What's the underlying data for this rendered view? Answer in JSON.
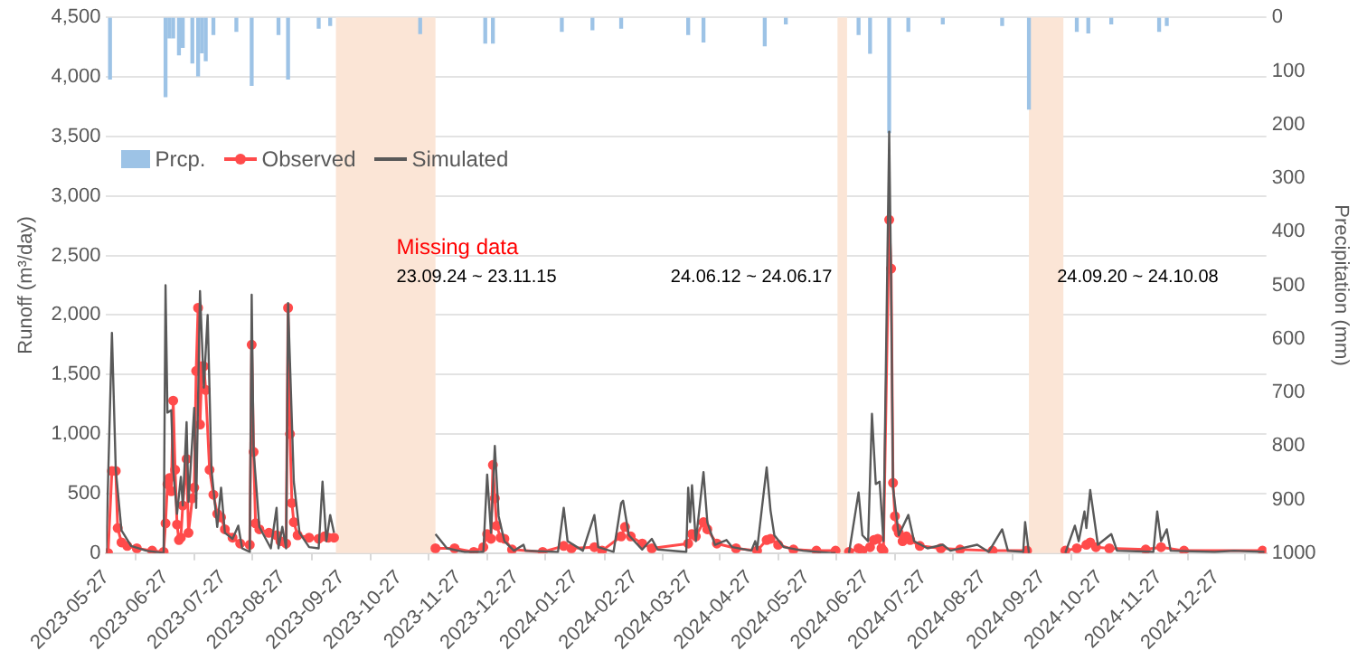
{
  "chart_data": {
    "type": "line",
    "xlabel": null,
    "ylabel": "Runoff (m³/day)",
    "y2label": "Precipitation (mm)",
    "xlim": [
      "2023-05-27",
      "2025-01-22"
    ],
    "xticks": [
      "2023-05-27",
      "2023-06-27",
      "2023-07-27",
      "2023-08-27",
      "2023-09-27",
      "2023-10-27",
      "2023-11-27",
      "2023-12-27",
      "2024-01-27",
      "2024-02-27",
      "2024-03-27",
      "2024-04-27",
      "2024-05-27",
      "2024-06-27",
      "2024-07-27",
      "2024-08-27",
      "2024-09-27",
      "2024-10-27",
      "2024-11-27",
      "2024-12-27"
    ],
    "ylim": [
      0,
      4500
    ],
    "yticks": [
      {
        "value": 0,
        "label": "0"
      },
      {
        "value": 500,
        "label": "500"
      },
      {
        "value": 1000,
        "label": "1,000"
      },
      {
        "value": 1500,
        "label": "1,500"
      },
      {
        "value": 2000,
        "label": "2,000"
      },
      {
        "value": 2500,
        "label": "2,500"
      },
      {
        "value": 3000,
        "label": "3,000"
      },
      {
        "value": 3500,
        "label": "3,500"
      },
      {
        "value": 4000,
        "label": "4,000"
      },
      {
        "value": 4500,
        "label": "4,500"
      }
    ],
    "y2lim": [
      1000,
      0
    ],
    "y2ticks": [
      0,
      100,
      200,
      300,
      400,
      500,
      600,
      700,
      800,
      900,
      1000
    ],
    "grid": "y",
    "legend": "top left",
    "bands": [
      {
        "axis": "x",
        "from": "2023-09-24",
        "to": "2023-11-15",
        "label": "Missing data",
        "color": "#fbe5d6"
      },
      {
        "axis": "x",
        "from": "2024-06-12",
        "to": "2024-06-17",
        "color": "#fbe5d6"
      },
      {
        "axis": "x",
        "from": "2024-09-20",
        "to": "2024-10-08",
        "color": "#fbe5d6"
      }
    ],
    "annotations": [
      "23.09.24 ~ 23.11.15",
      "24.06.12 ~ 24.06.17",
      "24.09.20 ~ 24.10.08"
    ],
    "series": [
      {
        "name": "Prcp.",
        "type": "bar",
        "axis": "y2",
        "color": "#9dc3e6",
        "x": [
          "2023-05-29",
          "2023-06-27",
          "2023-06-29",
          "2023-07-01",
          "2023-07-04",
          "2023-07-06",
          "2023-07-11",
          "2023-07-14",
          "2023-07-16",
          "2023-07-18",
          "2023-07-22",
          "2023-08-03",
          "2023-08-11",
          "2023-08-25",
          "2023-08-30",
          "2023-09-15",
          "2023-09-21",
          "2023-11-07",
          "2023-12-11",
          "2023-12-15",
          "2024-01-20",
          "2024-02-05",
          "2024-02-20",
          "2024-03-26",
          "2024-04-03",
          "2024-05-05",
          "2024-05-16",
          "2024-06-23",
          "2024-06-29",
          "2024-07-09",
          "2024-07-19",
          "2024-08-06",
          "2024-09-06",
          "2024-09-20",
          "2024-10-15",
          "2024-10-21",
          "2024-11-02",
          "2024-11-27",
          "2024-12-01"
        ],
        "values": [
          115,
          148,
          38,
          38,
          70,
          56,
          85,
          109,
          66,
          81,
          32,
          26,
          127,
          32,
          115,
          20,
          15,
          30,
          48,
          48,
          26,
          23,
          20,
          32,
          46,
          53,
          12,
          32,
          67,
          215,
          26,
          12,
          15,
          171,
          26,
          29,
          12,
          26,
          15
        ]
      },
      {
        "name": "Observed",
        "color": "#ff4b4b",
        "marker": "circle",
        "x": [
          "2023-05-27",
          "2023-05-28",
          "2023-05-30",
          "2023-06-01",
          "2023-06-02",
          "2023-06-04",
          "2023-06-07",
          "2023-06-12",
          "2023-06-20",
          "2023-06-26",
          "2023-06-27",
          "2023-06-28",
          "2023-06-29",
          "2023-06-30",
          "2023-07-01",
          "2023-07-02",
          "2023-07-03",
          "2023-07-04",
          "2023-07-05",
          "2023-07-06",
          "2023-07-08",
          "2023-07-09",
          "2023-07-11",
          "2023-07-12",
          "2023-07-13",
          "2023-07-14",
          "2023-07-15",
          "2023-07-16",
          "2023-07-17",
          "2023-07-18",
          "2023-07-20",
          "2023-07-22",
          "2023-07-24",
          "2023-07-26",
          "2023-07-28",
          "2023-08-01",
          "2023-08-05",
          "2023-08-10",
          "2023-08-11",
          "2023-08-12",
          "2023-08-13",
          "2023-08-15",
          "2023-08-20",
          "2023-08-24",
          "2023-08-26",
          "2023-08-29",
          "2023-08-30",
          "2023-08-31",
          "2023-09-01",
          "2023-09-02",
          "2023-09-04",
          "2023-09-10",
          "2023-09-15",
          "2023-09-18",
          "2023-09-20",
          "2023-09-23",
          "2023-10-20",
          "2023-11-15",
          "2023-11-25",
          "2023-12-05",
          "2023-12-10",
          "2023-12-12",
          "2023-12-14",
          "2023-12-15",
          "2023-12-16",
          "2023-12-17",
          "2023-12-19",
          "2023-12-21",
          "2023-12-25",
          "2024-01-10",
          "2024-01-21",
          "2024-01-25",
          "2024-02-06",
          "2024-02-10",
          "2024-02-20",
          "2024-02-22",
          "2024-02-25",
          "2024-03-02",
          "2024-03-07",
          "2024-03-26",
          "2024-03-28",
          "2024-03-30",
          "2024-04-03",
          "2024-04-05",
          "2024-04-10",
          "2024-04-20",
          "2024-05-01",
          "2024-05-06",
          "2024-05-08",
          "2024-05-12",
          "2024-05-20",
          "2024-06-01",
          "2024-06-11",
          "2024-06-14",
          "2024-06-18",
          "2024-06-23",
          "2024-06-25",
          "2024-06-29",
          "2024-07-01",
          "2024-07-03",
          "2024-07-05",
          "2024-07-06",
          "2024-07-09",
          "2024-07-10",
          "2024-07-11",
          "2024-07-12",
          "2024-07-13",
          "2024-07-14",
          "2024-07-16",
          "2024-07-18",
          "2024-07-20",
          "2024-07-25",
          "2024-08-05",
          "2024-08-15",
          "2024-09-01",
          "2024-09-19",
          "2024-09-30",
          "2024-10-09",
          "2024-10-15",
          "2024-10-20",
          "2024-10-22",
          "2024-10-25",
          "2024-11-01",
          "2024-11-20",
          "2024-11-28",
          "2024-12-10",
          "2025-01-20"
        ],
        "values": [
          0,
          0,
          690,
          690,
          210,
          90,
          60,
          40,
          20,
          10,
          250,
          580,
          630,
          520,
          1280,
          700,
          240,
          110,
          130,
          400,
          790,
          170,
          460,
          550,
          1530,
          2060,
          1080,
          1570,
          1570,
          1370,
          700,
          490,
          330,
          300,
          200,
          130,
          80,
          70,
          1750,
          850,
          250,
          200,
          170,
          150,
          100,
          80,
          2060,
          1000,
          420,
          260,
          150,
          130,
          120,
          140,
          130,
          130,
          null,
          40,
          40,
          10,
          50,
          160,
          120,
          740,
          460,
          230,
          130,
          120,
          30,
          10,
          60,
          40,
          50,
          20,
          140,
          220,
          140,
          80,
          40,
          80,
          160,
          140,
          260,
          200,
          80,
          40,
          20,
          110,
          120,
          70,
          30,
          20,
          20,
          null,
          10,
          40,
          20,
          50,
          110,
          120,
          40,
          20,
          2800,
          2390,
          590,
          310,
          210,
          170,
          100,
          140,
          110,
          60,
          40,
          30,
          20,
          20,
          null,
          20,
          40,
          70,
          90,
          50,
          40,
          30,
          50,
          20,
          20
        ]
      },
      {
        "name": "Simulated",
        "color": "#595959",
        "marker": "none",
        "x": [
          "2023-05-27",
          "2023-05-30",
          "2023-06-01",
          "2023-06-04",
          "2023-06-09",
          "2023-06-17",
          "2023-06-26",
          "2023-06-27",
          "2023-06-28",
          "2023-06-30",
          "2023-07-01",
          "2023-07-03",
          "2023-07-05",
          "2023-07-06",
          "2023-07-08",
          "2023-07-09",
          "2023-07-12",
          "2023-07-13",
          "2023-07-15",
          "2023-07-17",
          "2023-07-19",
          "2023-07-21",
          "2023-07-24",
          "2023-07-26",
          "2023-07-28",
          "2023-08-01",
          "2023-08-04",
          "2023-08-06",
          "2023-08-10",
          "2023-08-11",
          "2023-08-12",
          "2023-08-15",
          "2023-08-21",
          "2023-08-24",
          "2023-08-25",
          "2023-08-27",
          "2023-08-29",
          "2023-08-30",
          "2023-09-02",
          "2023-09-05",
          "2023-09-10",
          "2023-09-15",
          "2023-09-17",
          "2023-09-19",
          "2023-09-21",
          "2023-09-23",
          "2023-10-20",
          "2023-11-15",
          "2023-11-21",
          "2023-11-30",
          "2023-12-10",
          "2023-12-12",
          "2023-12-14",
          "2023-12-16",
          "2023-12-18",
          "2023-12-21",
          "2023-12-26",
          "2023-12-31",
          "2024-01-01",
          "2024-01-18",
          "2024-01-21",
          "2024-01-23",
          "2024-01-31",
          "2024-02-06",
          "2024-02-08",
          "2024-02-16",
          "2024-02-20",
          "2024-02-21",
          "2024-02-24",
          "2024-03-02",
          "2024-03-07",
          "2024-03-10",
          "2024-03-25",
          "2024-03-26",
          "2024-03-27",
          "2024-03-28",
          "2024-03-30",
          "2024-04-03",
          "2024-04-05",
          "2024-04-09",
          "2024-04-15",
          "2024-04-18",
          "2024-04-28",
          "2024-04-30",
          "2024-05-01",
          "2024-05-06",
          "2024-05-08",
          "2024-05-10",
          "2024-05-15",
          "2024-05-25",
          "2024-06-09",
          "2024-06-11",
          "2024-06-14",
          "2024-06-18",
          "2024-06-23",
          "2024-06-25",
          "2024-06-28",
          "2024-06-30",
          "2024-07-02",
          "2024-07-04",
          "2024-07-06",
          "2024-07-09",
          "2024-07-10",
          "2024-07-11",
          "2024-07-14",
          "2024-07-19",
          "2024-07-22",
          "2024-07-29",
          "2024-08-06",
          "2024-08-10",
          "2024-08-24",
          "2024-08-30",
          "2024-09-06",
          "2024-09-09",
          "2024-09-17",
          "2024-09-18",
          "2024-09-20",
          "2024-09-30",
          "2024-10-09",
          "2024-10-14",
          "2024-10-16",
          "2024-10-19",
          "2024-10-20",
          "2024-10-22",
          "2024-10-26",
          "2024-11-02",
          "2024-11-05",
          "2024-11-24",
          "2024-11-26",
          "2024-11-28",
          "2024-12-01",
          "2024-12-03",
          "2024-12-26",
          "2025-01-05",
          "2025-01-21"
        ],
        "values": [
          0,
          1850,
          700,
          190,
          60,
          20,
          0,
          2250,
          1180,
          1200,
          700,
          330,
          640,
          400,
          1100,
          430,
          1220,
          380,
          2200,
          1390,
          2000,
          700,
          220,
          550,
          170,
          120,
          230,
          40,
          10,
          2170,
          860,
          220,
          40,
          380,
          40,
          220,
          40,
          2100,
          600,
          170,
          50,
          40,
          600,
          100,
          320,
          170,
          null,
          160,
          40,
          10,
          10,
          660,
          170,
          900,
          310,
          100,
          20,
          70,
          20,
          10,
          380,
          100,
          20,
          320,
          50,
          10,
          420,
          440,
          150,
          30,
          120,
          30,
          10,
          550,
          260,
          570,
          100,
          680,
          260,
          70,
          110,
          50,
          20,
          100,
          30,
          720,
          360,
          150,
          50,
          20,
          0,
          0,
          null,
          0,
          510,
          150,
          100,
          1170,
          580,
          600,
          100,
          3540,
          2280,
          550,
          150,
          320,
          100,
          40,
          70,
          20,
          70,
          10,
          200,
          20,
          10,
          260,
          0,
          null,
          0,
          230,
          100,
          350,
          210,
          530,
          70,
          160,
          20,
          10,
          350,
          100,
          200,
          20,
          10,
          20,
          10
        ]
      }
    ]
  }
}
